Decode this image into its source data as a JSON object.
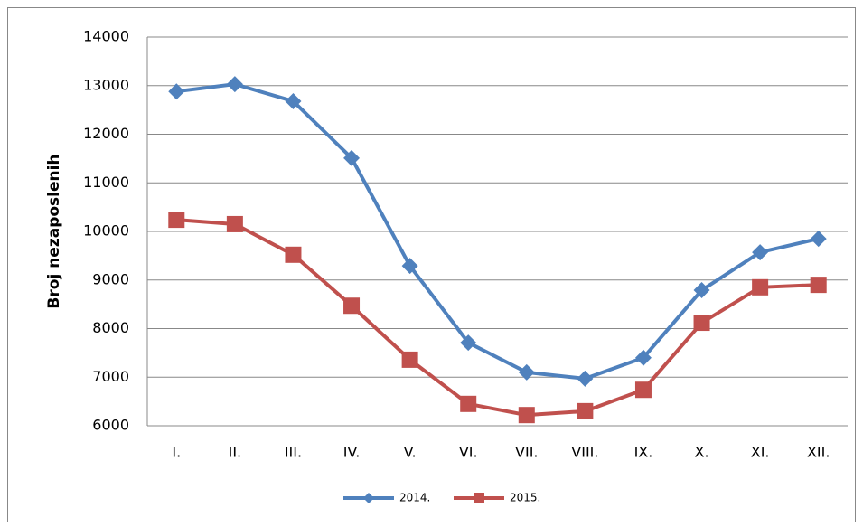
{
  "chart_data": {
    "type": "line",
    "y_label": "Broj nezaposlenih",
    "categories": [
      "I.",
      "II.",
      "III.",
      "IV.",
      "V.",
      "VI.",
      "VII.",
      "VIII.",
      "IX.",
      "X.",
      "XI.",
      "XII."
    ],
    "series": [
      {
        "name": "2014.",
        "color": "#4f81bd",
        "marker": "diamond",
        "values": [
          12880,
          13030,
          12680,
          11510,
          9290,
          7710,
          7100,
          6970,
          7400,
          8790,
          9570,
          9850
        ]
      },
      {
        "name": "2015.",
        "color": "#c0504d",
        "marker": "square",
        "values": [
          10240,
          10150,
          9520,
          8470,
          7360,
          6450,
          6220,
          6300,
          6740,
          8120,
          8850,
          8900
        ]
      }
    ],
    "ylim": [
      6000,
      14000
    ],
    "yticks": [
      6000,
      7000,
      8000,
      9000,
      10000,
      11000,
      12000,
      13000,
      14000
    ],
    "grid": true,
    "legend": "bottom"
  }
}
